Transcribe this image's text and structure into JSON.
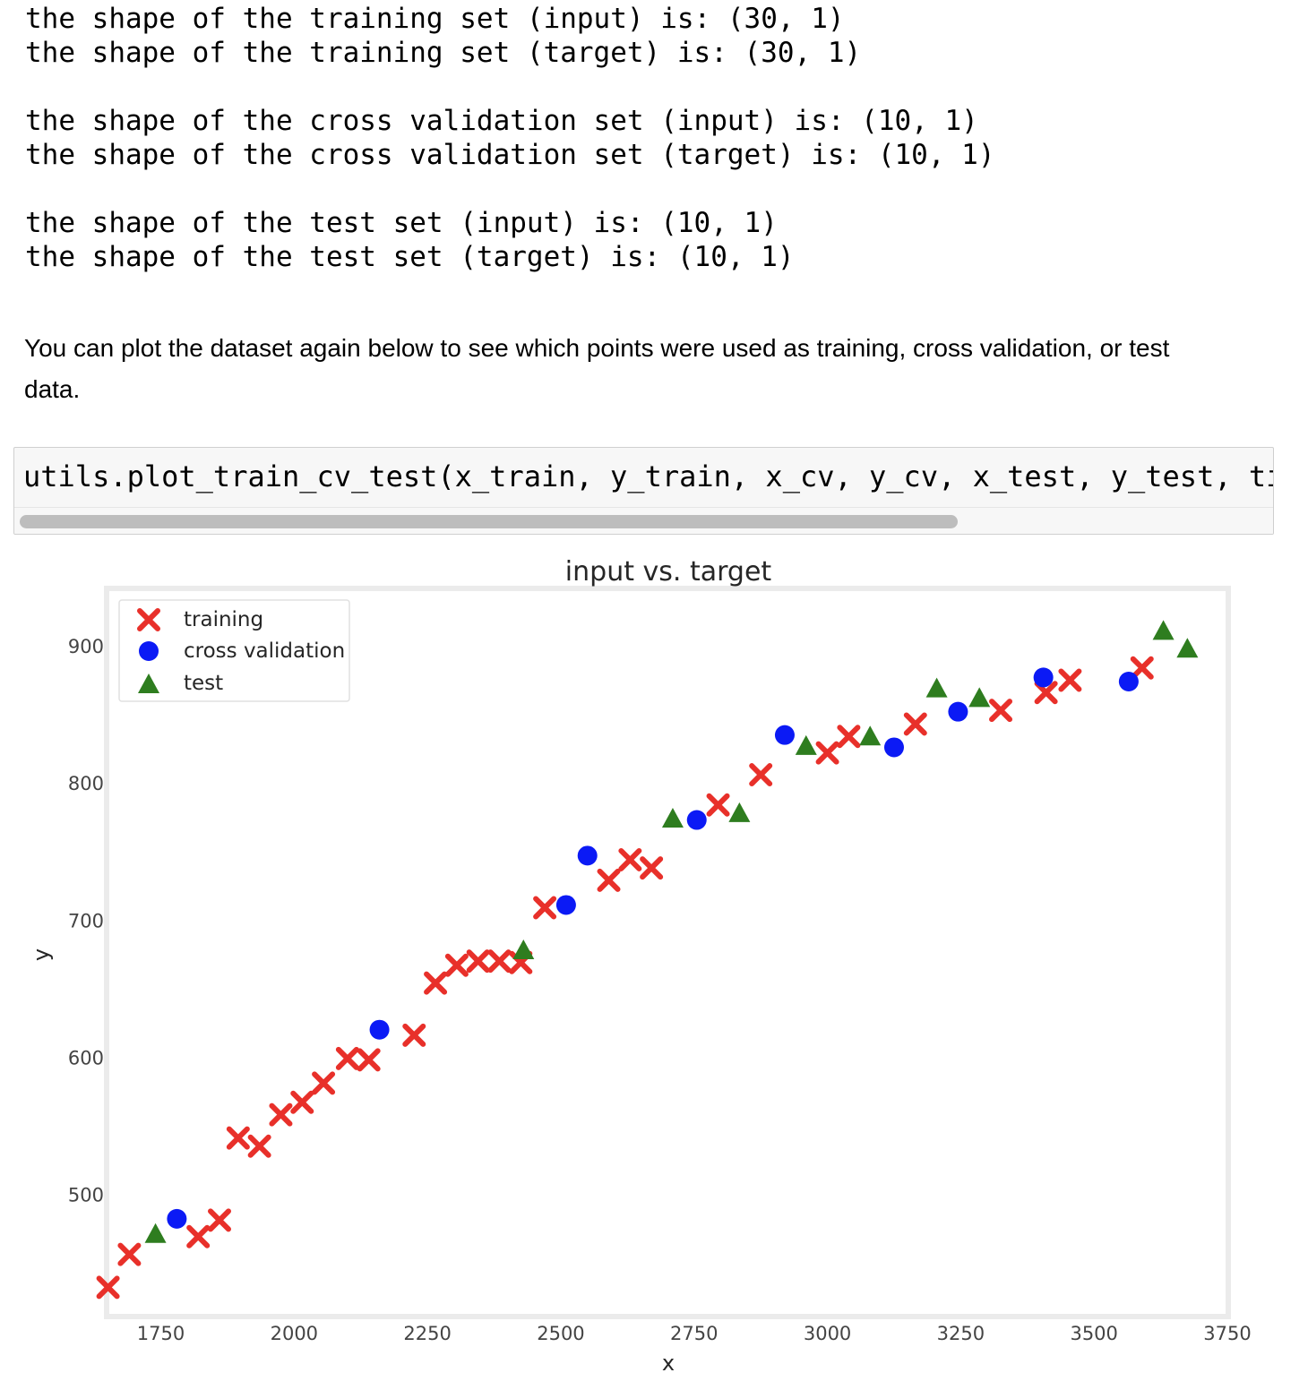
{
  "output": {
    "lines": [
      "the shape of the training set (input) is: (30, 1)",
      "the shape of the training set (target) is: (30, 1)",
      "the shape of the cross validation set (input) is: (10, 1)",
      "the shape of the cross validation set (target) is: (10, 1)",
      "the shape of the test set (input) is: (10, 1)",
      "the shape of the test set (target) is: (10, 1)"
    ]
  },
  "markdown": {
    "text": "You can plot the dataset again below to see which points were used as training, cross validation, or test data."
  },
  "code_cell": {
    "code": "utils.plot_train_cv_test(x_train, y_train, x_cv, y_cv, x_test, y_test, ti"
  },
  "chart_data": {
    "type": "scatter",
    "title": "input vs. target",
    "xlabel": "x",
    "ylabel": "y",
    "xlim": [
      1650,
      3750
    ],
    "ylim": [
      412,
      940
    ],
    "xticks": [
      "1750",
      "2000",
      "2250",
      "2500",
      "2750",
      "3000",
      "3250",
      "3500",
      "3750"
    ],
    "yticks": [
      "500",
      "600",
      "700",
      "800",
      "900"
    ],
    "xtick_values": [
      1750,
      2000,
      2250,
      2500,
      2750,
      3000,
      3250,
      3500,
      3750
    ],
    "ytick_values": [
      500,
      600,
      700,
      800,
      900
    ],
    "grid": false,
    "legend_position": "top-left",
    "series": [
      {
        "name": "training",
        "marker": "x",
        "color": "#e8302a",
        "points": [
          [
            1651,
            432
          ],
          [
            1691,
            456
          ],
          [
            1820,
            469
          ],
          [
            1860,
            481
          ],
          [
            1895,
            541
          ],
          [
            1935,
            535
          ],
          [
            1975,
            558
          ],
          [
            2015,
            567
          ],
          [
            2055,
            581
          ],
          [
            2100,
            599
          ],
          [
            2140,
            598
          ],
          [
            2225,
            616
          ],
          [
            2265,
            654
          ],
          [
            2305,
            667
          ],
          [
            2345,
            670
          ],
          [
            2385,
            670
          ],
          [
            2425,
            669
          ],
          [
            2470,
            709
          ],
          [
            2590,
            729
          ],
          [
            2630,
            744
          ],
          [
            2670,
            738
          ],
          [
            2795,
            784
          ],
          [
            2875,
            806
          ],
          [
            3000,
            822
          ],
          [
            3040,
            834
          ],
          [
            3165,
            843
          ],
          [
            3325,
            853
          ],
          [
            3410,
            866
          ],
          [
            3455,
            875
          ],
          [
            3590,
            884
          ]
        ]
      },
      {
        "name": "cross validation",
        "marker": "o",
        "color": "#0b1af5",
        "points": [
          [
            1780,
            482
          ],
          [
            2160,
            620
          ],
          [
            2510,
            711
          ],
          [
            2550,
            747
          ],
          [
            2755,
            773
          ],
          [
            2920,
            835
          ],
          [
            3125,
            826
          ],
          [
            3245,
            852
          ],
          [
            3405,
            877
          ],
          [
            3565,
            874
          ]
        ]
      },
      {
        "name": "test",
        "marker": "^",
        "color": "#2e7d1f",
        "points": [
          [
            1740,
            471
          ],
          [
            2430,
            678
          ],
          [
            2710,
            774
          ],
          [
            2835,
            778
          ],
          [
            2960,
            827
          ],
          [
            3080,
            834
          ],
          [
            3205,
            869
          ],
          [
            3285,
            862
          ],
          [
            3630,
            911
          ],
          [
            3675,
            898
          ]
        ]
      }
    ]
  }
}
